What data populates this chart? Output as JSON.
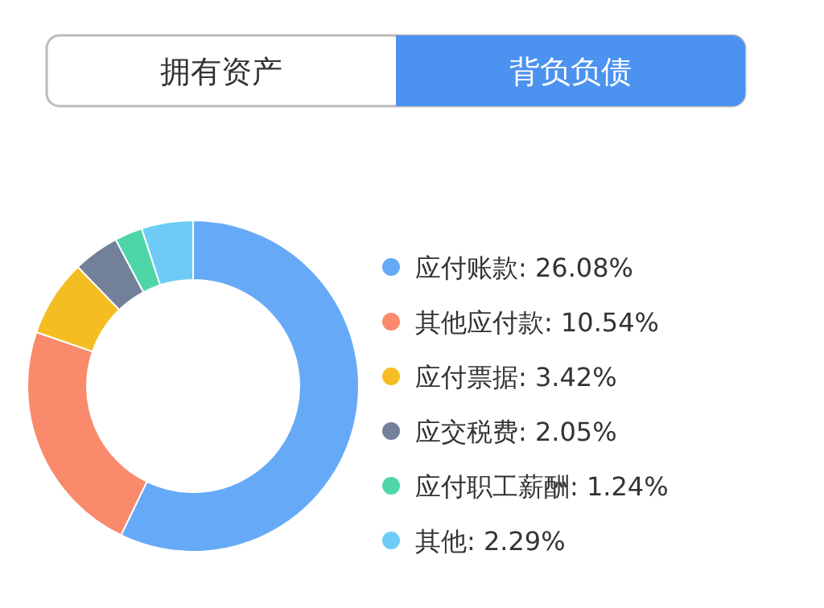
{
  "chart_data": {
    "type": "donut",
    "annotations": [
      "拥有资产",
      "背负负债"
    ],
    "categories": [
      "应付账款",
      "其他应付款",
      "应付票据",
      "应交税费",
      "应付职工薪酬",
      "其他"
    ],
    "values": [
      26.08,
      10.54,
      3.42,
      2.05,
      1.24,
      2.29
    ],
    "value_labels": [
      "26.08%",
      "10.54%",
      "3.42%",
      "2.05%",
      "1.24%",
      "2.29%"
    ],
    "colors": [
      "#66aaf7",
      "#f98a6b",
      "#f4be22",
      "#72809a",
      "#4fd6a8",
      "#6ecbf6"
    ],
    "legend": "right"
  }
}
